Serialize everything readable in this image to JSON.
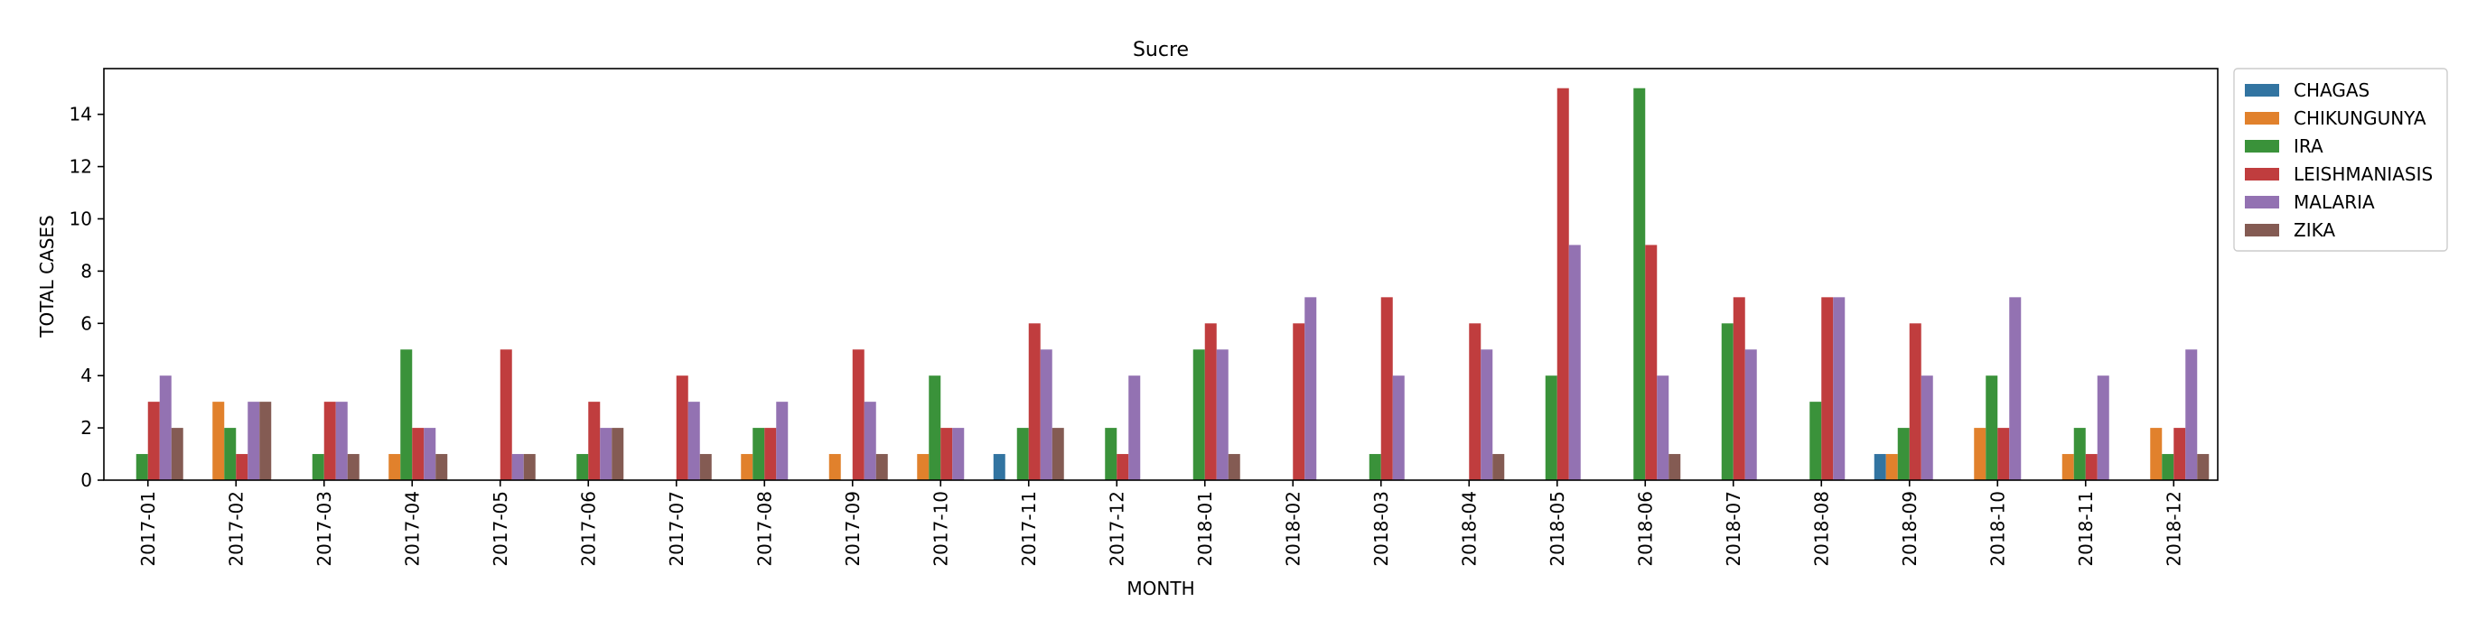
{
  "chart_data": {
    "type": "bar",
    "title": "Sucre",
    "xlabel": "MONTH",
    "ylabel": "TOTAL CASES",
    "ylim": [
      0,
      15.75
    ],
    "yticks": [
      0,
      2,
      4,
      6,
      8,
      10,
      12,
      14
    ],
    "legend_position": "outside-top-right",
    "categories": [
      "2017-01",
      "2017-02",
      "2017-03",
      "2017-04",
      "2017-05",
      "2017-06",
      "2017-07",
      "2017-08",
      "2017-09",
      "2017-10",
      "2017-11",
      "2017-12",
      "2018-01",
      "2018-02",
      "2018-03",
      "2018-04",
      "2018-05",
      "2018-06",
      "2018-07",
      "2018-08",
      "2018-09",
      "2018-10",
      "2018-11",
      "2018-12"
    ],
    "series": [
      {
        "name": "CHAGAS",
        "color": "#3274a1",
        "values": [
          0,
          0,
          0,
          0,
          0,
          0,
          0,
          0,
          0,
          0,
          1,
          0,
          0,
          0,
          0,
          0,
          0,
          0,
          0,
          0,
          1,
          0,
          0,
          0
        ]
      },
      {
        "name": "CHIKUNGUNYA",
        "color": "#e1812c",
        "values": [
          0,
          3,
          0,
          1,
          0,
          0,
          0,
          1,
          1,
          1,
          0,
          0,
          0,
          0,
          0,
          0,
          0,
          0,
          0,
          0,
          1,
          2,
          1,
          2
        ]
      },
      {
        "name": "IRA",
        "color": "#3a923a",
        "values": [
          1,
          2,
          1,
          5,
          0,
          1,
          0,
          2,
          0,
          4,
          2,
          2,
          5,
          0,
          1,
          0,
          4,
          15,
          6,
          3,
          2,
          4,
          2,
          1
        ]
      },
      {
        "name": "LEISHMANIASIS",
        "color": "#c03d3e",
        "values": [
          3,
          1,
          3,
          2,
          5,
          3,
          4,
          2,
          5,
          2,
          6,
          1,
          6,
          6,
          7,
          6,
          15,
          9,
          7,
          7,
          6,
          2,
          1,
          2
        ]
      },
      {
        "name": "MALARIA",
        "color": "#9372b2",
        "values": [
          4,
          3,
          3,
          2,
          1,
          2,
          3,
          3,
          3,
          2,
          5,
          4,
          5,
          7,
          4,
          5,
          9,
          4,
          5,
          7,
          4,
          7,
          4,
          5
        ]
      },
      {
        "name": "ZIKA",
        "color": "#845b53",
        "values": [
          2,
          3,
          1,
          1,
          1,
          2,
          1,
          0,
          1,
          0,
          2,
          0,
          1,
          0,
          0,
          1,
          0,
          1,
          0,
          0,
          0,
          0,
          0,
          1
        ]
      }
    ]
  }
}
